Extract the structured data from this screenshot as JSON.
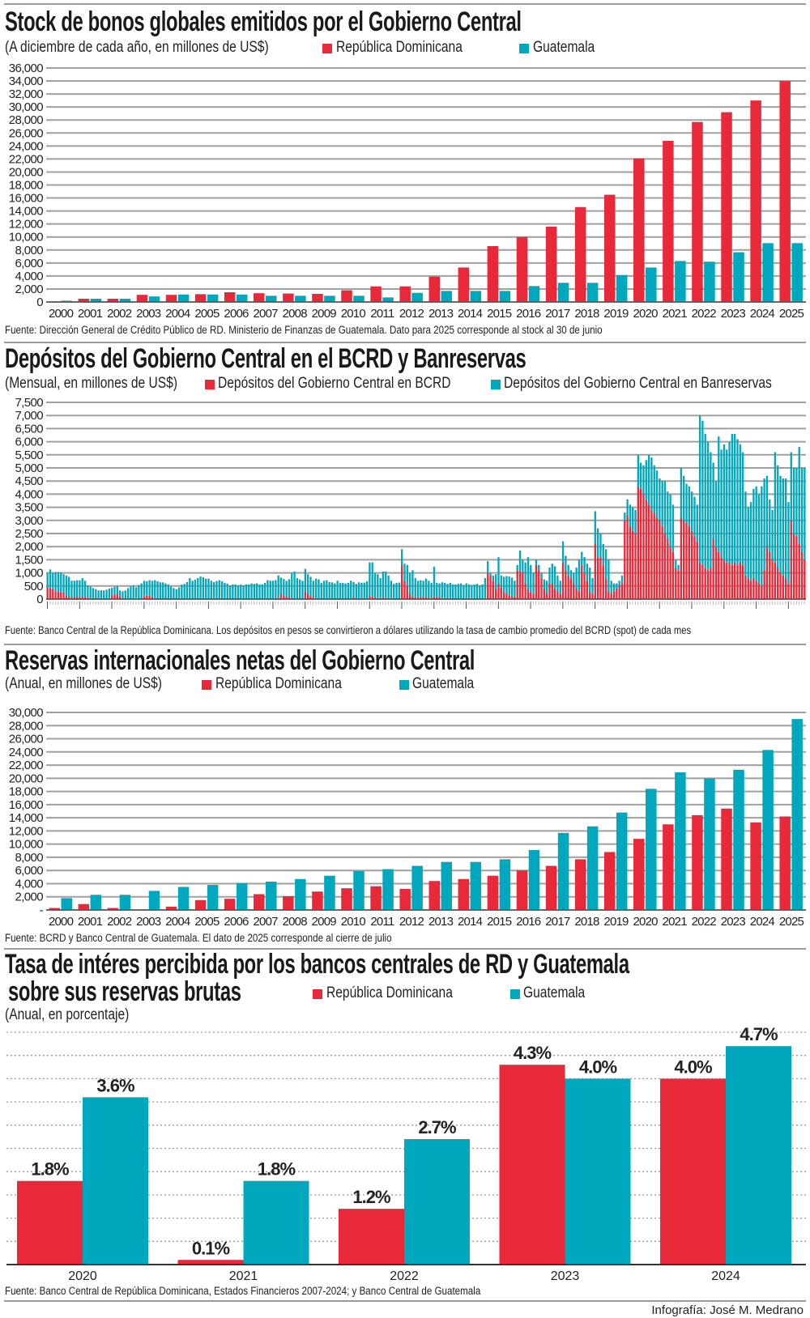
{
  "colors": {
    "red": "#e8293a",
    "teal": "#00a8bd",
    "grid": "#a0a0a0"
  },
  "charts": [
    {
      "title": "Stock de bonos globales emitidos por el Gobierno Central",
      "subtitle": "(A diciembre de cada año, en millones de US$)",
      "legend": [
        "República Dominicana",
        "Guatemala"
      ],
      "source": "Fuente: Dirección General de Crédito Público de RD.  Ministerio de Finanzas de Guatemala. Dato para 2025 corresponde al stock al 30 de junio"
    },
    {
      "title": "Depósitos del Gobierno Central en el BCRD y Banreservas",
      "subtitle": "(Mensual, en millones de US$)",
      "legend": [
        "Depósitos del Gobierno Central en BCRD",
        "Depósitos del Gobierno Central en Banreservas"
      ],
      "source": "Fuente: Banco Central de la República Dominicana. Los depósitos en pesos se convirtieron a dólares utilizando la tasa de cambio promedio del BCRD (spot) de cada mes"
    },
    {
      "title": "Reservas internacionales netas del Gobierno Central",
      "subtitle": "(Anual, en millones de US$)",
      "legend": [
        "República Dominicana",
        "Guatemala"
      ],
      "source": "Fuente: BCRD y Banco Central de Guatemala.  El dato de 2025 corresponde al cierre de julio"
    },
    {
      "title_line1": "Tasa de intéres percibida por los bancos centrales de RD y Guatemala",
      "title_line2": "sobre sus reservas brutas",
      "subtitle": "(Anual, en porcentaje)",
      "legend": [
        "República Dominicana",
        "Guatemala"
      ],
      "source": "Fuente:  Banco Central de República Dominicana, Estados Financieros 2007-2024; y Banco Central de Guatemala"
    }
  ],
  "credit": "Infografía: José M. Medrano",
  "chart_data": [
    {
      "type": "bar",
      "title": "Stock de bonos globales emitidos por el Gobierno Central",
      "ylim": [
        0,
        36000
      ],
      "yticks": [
        "0",
        "2,000",
        "4,000",
        "6,000",
        "8,000",
        "10,000",
        "12,000",
        "14,000",
        "16,000",
        "18,000",
        "20,000",
        "22,000",
        "24,000",
        "26,000",
        "28,000",
        "30,000",
        "32,000",
        "34,000",
        "36,000"
      ],
      "grid": true,
      "categories": [
        "2000",
        "2001",
        "2002",
        "2003",
        "2004",
        "2005",
        "2006",
        "2007",
        "2008",
        "2009",
        "2010",
        "2011",
        "2012",
        "2013",
        "2014",
        "2015",
        "2016",
        "2017",
        "2018",
        "2019",
        "2020",
        "2021",
        "2022",
        "2023",
        "2024",
        "2025"
      ],
      "series": [
        {
          "name": "República Dominicana",
          "values": [
            0,
            500,
            500,
            1100,
            1100,
            1200,
            1500,
            1350,
            1300,
            1250,
            1800,
            2400,
            2400,
            3900,
            5300,
            8600,
            10000,
            11600,
            14600,
            16500,
            22100,
            24800,
            27700,
            29200,
            31000,
            34000
          ]
        },
        {
          "name": "Guatemala",
          "values": [
            200,
            500,
            500,
            850,
            1150,
            1150,
            1150,
            950,
            950,
            950,
            950,
            700,
            1400,
            1700,
            1700,
            1700,
            2450,
            2950,
            2950,
            4150,
            5300,
            6300,
            6200,
            7650,
            9050,
            9050
          ]
        }
      ]
    },
    {
      "type": "bar",
      "stacked": true,
      "title": "Depósitos del Gobierno Central en el BCRD y Banreservas",
      "ylim": [
        0,
        7500
      ],
      "yticks": [
        "0",
        "500",
        "1,000",
        "1,500",
        "2,000",
        "2,500",
        "3,000",
        "3,500",
        "4,000",
        "4,500",
        "5,000",
        "5,500",
        "6,000",
        "6,500",
        "7,000",
        "7,500"
      ],
      "grid": true,
      "series": [
        {
          "name": "Depósitos del Gobierno Central en BCRD",
          "values": [
            450,
            430,
            380,
            300,
            300,
            280,
            250,
            120,
            80,
            80,
            90,
            90,
            100,
            100,
            80,
            60,
            40,
            30,
            50,
            30,
            30,
            30,
            30,
            40,
            150,
            180,
            200,
            120,
            40,
            30,
            20,
            30,
            30,
            40,
            30,
            30,
            120,
            130,
            150,
            100,
            40,
            30,
            30,
            30,
            30,
            40,
            30,
            20,
            30,
            40,
            30,
            30,
            20,
            30,
            30,
            30,
            30,
            40,
            30,
            30,
            30,
            30,
            30,
            40,
            30,
            30,
            30,
            30,
            30,
            30,
            30,
            30,
            30,
            30,
            30,
            30,
            30,
            30,
            30,
            30,
            30,
            30,
            30,
            30,
            30,
            40,
            50,
            200,
            150,
            100,
            80,
            40,
            30,
            30,
            30,
            30,
            300,
            200,
            120,
            60,
            40,
            30,
            30,
            30,
            30,
            30,
            30,
            30,
            30,
            30,
            30,
            30,
            30,
            30,
            60,
            30,
            30,
            40,
            30,
            30,
            120,
            100,
            80,
            40,
            40,
            60,
            40,
            40,
            40,
            30,
            30,
            30,
            1300,
            700,
            500,
            200,
            100,
            80,
            60,
            80,
            60,
            80,
            60,
            40,
            100,
            80,
            60,
            40,
            40,
            40,
            40,
            30,
            30,
            30,
            30,
            30,
            40,
            40,
            40,
            30,
            30,
            30,
            30,
            40,
            1000,
            900,
            700,
            400,
            600,
            450,
            300,
            200,
            150,
            120,
            100,
            1100,
            1100,
            1000,
            600,
            400,
            250,
            200,
            1300,
            1100,
            800,
            400,
            200,
            600,
            600,
            400,
            300,
            200,
            1400,
            1100,
            900,
            800,
            600,
            400,
            300,
            1300,
            1000,
            700,
            300,
            200,
            2100,
            1600,
            1600,
            1300,
            800,
            300,
            200,
            300,
            400,
            500,
            600,
            3000,
            3200,
            2800,
            2600,
            2500,
            4300,
            4200,
            4000,
            3800,
            3600,
            3400,
            3300,
            3100,
            3000,
            2800,
            2500,
            2300,
            2000,
            1800,
            1200,
            1100,
            3100,
            3000,
            2900,
            2800,
            2600,
            2400,
            2200,
            1400,
            1300,
            1200,
            1100,
            1200,
            2300,
            2000,
            1800,
            1600,
            1500,
            1400,
            1400,
            1300,
            1400,
            1300,
            1400,
            1300,
            900,
            800,
            700,
            800,
            700,
            600,
            500,
            1100,
            2000,
            1800,
            1500,
            1400,
            1200,
            1000,
            900,
            800,
            600,
            3000,
            2500,
            2400,
            2100,
            1800,
            1500
          ]
        },
        {
          "name": "Depósitos del Gobierno Central en Banreservas",
          "values": [
            550,
            700,
            620,
            730,
            730,
            740,
            700,
            780,
            770,
            620,
            610,
            630,
            620,
            700,
            620,
            460,
            440,
            390,
            330,
            300,
            310,
            300,
            330,
            360,
            280,
            290,
            300,
            210,
            260,
            300,
            400,
            450,
            490,
            410,
            510,
            570,
            580,
            550,
            570,
            600,
            680,
            650,
            610,
            610,
            570,
            520,
            450,
            400,
            350,
            410,
            520,
            550,
            630,
            770,
            670,
            710,
            770,
            820,
            800,
            750,
            750,
            670,
            620,
            650,
            690,
            650,
            590,
            560,
            490,
            530,
            530,
            490,
            520,
            490,
            530,
            530,
            570,
            550,
            570,
            530,
            530,
            590,
            690,
            670,
            670,
            680,
            850,
            620,
            620,
            600,
            680,
            960,
            1020,
            770,
            720,
            670,
            850,
            750,
            730,
            640,
            740,
            720,
            590,
            670,
            690,
            620,
            610,
            570,
            670,
            590,
            590,
            570,
            590,
            670,
            590,
            550,
            610,
            580,
            600,
            650,
            1280,
            1300,
            920,
            910,
            760,
            990,
            1010,
            860,
            660,
            550,
            590,
            600,
            600,
            650,
            800,
            800,
            1000,
            720,
            640,
            640,
            640,
            700,
            640,
            580,
            1130,
            540,
            540,
            600,
            580,
            540,
            580,
            530,
            530,
            550,
            570,
            510,
            560,
            520,
            500,
            530,
            550,
            490,
            530,
            760,
            450,
            100,
            200,
            550,
            1000,
            450,
            550,
            680,
            710,
            700,
            600,
            200,
            750,
            500,
            800,
            1200,
            1050,
            800,
            200,
            200,
            200,
            350,
            500,
            600,
            750,
            850,
            600,
            500,
            800,
            550,
            400,
            300,
            400,
            800,
            1200,
            500,
            600,
            650,
            900,
            600,
            1250,
            1100,
            900,
            800,
            1100,
            1200,
            500,
            300,
            200,
            200,
            300,
            300,
            600,
            800,
            900,
            900,
            1200,
            1000,
            1100,
            1500,
            1900,
            2000,
            1800,
            1800,
            1600,
            1700,
            2000,
            1800,
            2000,
            1800,
            300,
            200,
            1900,
            1700,
            1500,
            1500,
            1500,
            1500,
            1400,
            5600,
            5500,
            5100,
            4900,
            4400,
            2900,
            2500,
            4400,
            4100,
            4400,
            4300,
            4600,
            5000,
            4900,
            4800,
            4500,
            4300,
            3200,
            2700,
            3000,
            3400,
            3600,
            3400,
            3800,
            3500,
            2700,
            2000,
            1900,
            4200,
            3900,
            3700,
            3700,
            3800,
            3100,
            2600,
            2500,
            2600,
            3700,
            3200,
            3500
          ]
        }
      ]
    },
    {
      "type": "bar",
      "title": "Reservas internacionales netas del Gobierno Central",
      "ylim": [
        0,
        30000
      ],
      "yticks": [
        "-",
        "2,000",
        "4,000",
        "6,000",
        "8,000",
        "10,000",
        "12,000",
        "14,000",
        "16,000",
        "18,000",
        "20,000",
        "22,000",
        "24,000",
        "26,000",
        "28,000",
        "30,000"
      ],
      "grid": true,
      "categories": [
        "2000",
        "2001",
        "2002",
        "2003",
        "2004",
        "2005",
        "2006",
        "2007",
        "2008",
        "2009",
        "2010",
        "2011",
        "2012",
        "2013",
        "2014",
        "2015",
        "2016",
        "2017",
        "2018",
        "2019",
        "2020",
        "2021",
        "2022",
        "2023",
        "2024",
        "2025"
      ],
      "series": [
        {
          "name": "República Dominicana",
          "values": [
            300,
            900,
            300,
            50,
            500,
            1500,
            1700,
            2400,
            2100,
            2800,
            3300,
            3600,
            3200,
            4400,
            4700,
            5200,
            6000,
            6700,
            7700,
            8800,
            10800,
            13000,
            14400,
            15400,
            13300,
            14200
          ]
        },
        {
          "name": "Guatemala",
          "values": [
            1800,
            2300,
            2300,
            2900,
            3500,
            3800,
            4100,
            4300,
            4700,
            5200,
            5900,
            6200,
            6700,
            7300,
            7300,
            7700,
            9100,
            11700,
            12700,
            14800,
            18400,
            20900,
            20000,
            21300,
            24300,
            29000
          ]
        }
      ]
    },
    {
      "type": "bar",
      "title": "Tasa de intéres percibida por los bancos centrales de RD y Guatemala sobre sus reservas brutas",
      "ylim": [
        0,
        5
      ],
      "grid": true,
      "categories": [
        "2020",
        "2021",
        "2022",
        "2023",
        "2024"
      ],
      "series": [
        {
          "name": "República Dominicana",
          "values": [
            1.8,
            0.1,
            1.2,
            4.3,
            4.0
          ],
          "labels": [
            "1.8%",
            "0.1%",
            "1.2%",
            "4.3%",
            "4.0%"
          ]
        },
        {
          "name": "Guatemala",
          "values": [
            3.6,
            1.8,
            2.7,
            4.0,
            4.7
          ],
          "labels": [
            "3.6%",
            "1.8%",
            "2.7%",
            "4.0%",
            "4.7%"
          ]
        }
      ]
    }
  ]
}
